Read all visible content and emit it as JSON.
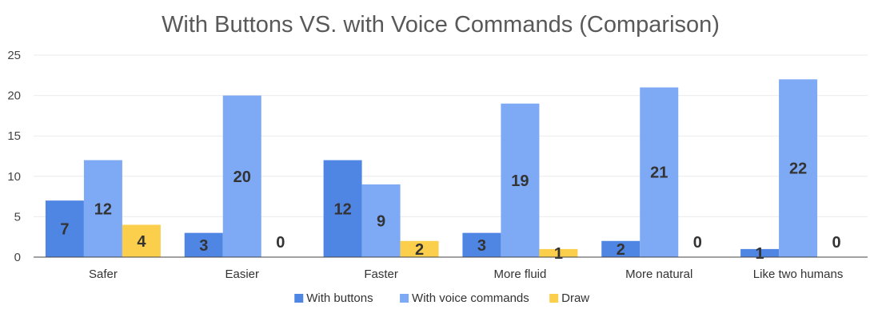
{
  "chart_data": {
    "type": "bar",
    "title": "With Buttons VS. with Voice Commands (Comparison)",
    "xlabel": "",
    "ylabel": "",
    "categories": [
      "Safer",
      "Easier",
      "Faster",
      "More fluid",
      "More natural",
      "Like two humans"
    ],
    "series": [
      {
        "name": "With buttons",
        "values": [
          7,
          3,
          12,
          3,
          2,
          1
        ],
        "color": "#4f86e4"
      },
      {
        "name": "With voice commands",
        "values": [
          12,
          20,
          9,
          19,
          21,
          22
        ],
        "color": "#7da9f5"
      },
      {
        "name": "Draw",
        "values": [
          4,
          0,
          2,
          1,
          0,
          0
        ],
        "color": "#fbcf4b"
      }
    ],
    "ylim": [
      0,
      25
    ],
    "yticks": [
      0,
      5,
      10,
      15,
      20,
      25
    ],
    "grid": true,
    "legend": "bottom"
  }
}
